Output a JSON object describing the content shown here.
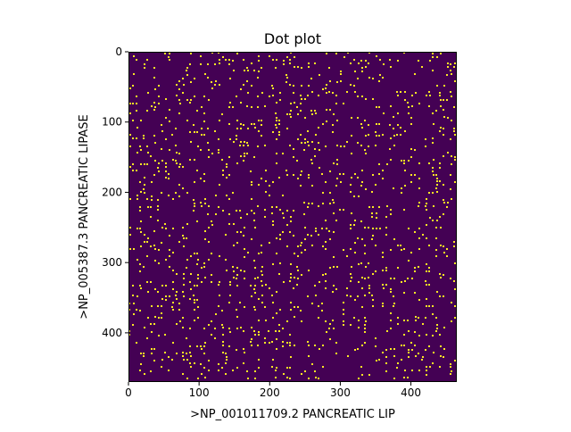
{
  "chart_data": {
    "type": "heatmap",
    "title": "Dot plot",
    "xlabel": ">NP_001011709.2 PANCREATIC LIP",
    "ylabel": ">NP_005387.3 PANCREATIC LIPASE",
    "xlim": [
      0,
      465
    ],
    "ylim": [
      470,
      0
    ],
    "x_ticks": [
      0,
      100,
      200,
      300,
      400
    ],
    "y_ticks": [
      0,
      100,
      200,
      300,
      400
    ],
    "x_tick_labels": [
      "0",
      "100",
      "200",
      "300",
      "400"
    ],
    "y_tick_labels": [
      "0",
      "100",
      "200",
      "300",
      "400"
    ],
    "colormap": "viridis",
    "values_present": [
      0,
      1
    ],
    "background_color": "#440154",
    "match_color": "#fde725",
    "grid": false,
    "legend": "none"
  }
}
